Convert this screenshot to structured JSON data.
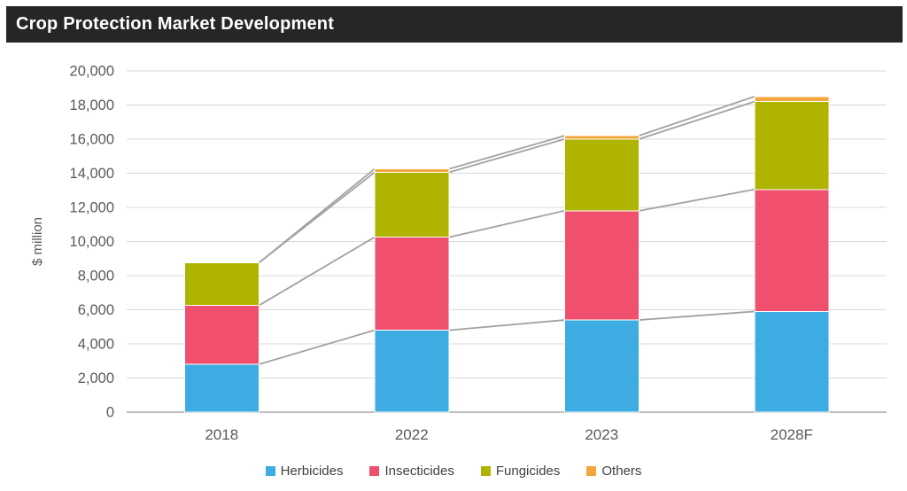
{
  "header": {
    "title": "Crop Protection Market Development"
  },
  "colors": {
    "title_bar_bg": "#242628",
    "title_text": "#FFFFFF",
    "gridline": "#D9D9D9",
    "axis_line": "#BFBFBF",
    "tick_text": "#595959",
    "series_line": "#A2A2A2",
    "legend_text": "#404040"
  },
  "chart_data": {
    "type": "bar",
    "stacked": true,
    "title": "Crop Protection Market Development",
    "xlabel": "",
    "ylabel": "$ million",
    "categories": [
      "2018",
      "2022",
      "2023",
      "2028F"
    ],
    "series": [
      {
        "name": "Herbicides",
        "color": "#3CACE2",
        "values": [
          2800,
          4800,
          5400,
          5900
        ]
      },
      {
        "name": "Insecticides",
        "color": "#F0506E",
        "values": [
          3450,
          5450,
          6400,
          7150
        ]
      },
      {
        "name": "Fungicides",
        "color": "#AFB400",
        "values": [
          2500,
          3800,
          4200,
          5150
        ]
      },
      {
        "name": "Others",
        "color": "#F2A63B",
        "values": [
          0,
          200,
          200,
          300
        ]
      }
    ],
    "totals": [
      8750,
      14250,
      16200,
      18500
    ],
    "ylim": [
      0,
      20000
    ],
    "ytick_step": 2000,
    "ytick_labels": [
      "0",
      "2,000",
      "4,000",
      "6,000",
      "8,000",
      "10,000",
      "12,000",
      "14,000",
      "16,000",
      "18,000",
      "20,000"
    ],
    "grid": true,
    "series_lines": true,
    "legend_position": "bottom"
  }
}
